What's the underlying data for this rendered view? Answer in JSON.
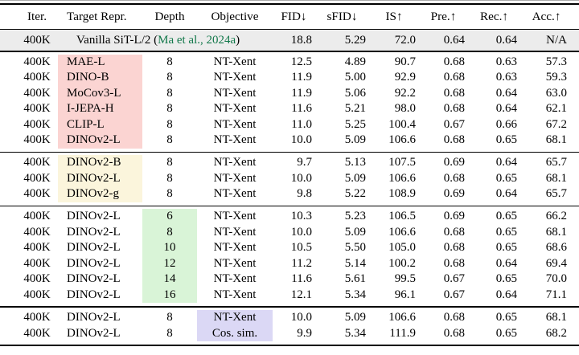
{
  "table": {
    "headers": [
      "Iter.",
      "Target Repr.",
      "Depth",
      "Objective",
      "FID↓",
      "sFID↓",
      "IS↑",
      "Pre.↑",
      "Rec.↑",
      "Acc.↑"
    ],
    "baseline": {
      "iter": "400K",
      "target_prefix": "Vanilla SiT-L/2 (",
      "citation": "Ma et al., 2024a",
      "target_suffix": ")",
      "fid": "18.8",
      "sfid": "5.29",
      "is": "72.0",
      "pre": "0.64",
      "rec": "0.64",
      "acc": "N/A",
      "row_bg": "#ececec",
      "citation_color": "#12784a"
    },
    "sections": [
      {
        "name": "target-representation-ablation",
        "highlight_column": 1,
        "highlight_color": "#fbd4d2",
        "rows": [
          [
            "400K",
            "MAE-L",
            "8",
            "NT-Xent",
            "12.5",
            "4.89",
            "90.7",
            "0.68",
            "0.63",
            "57.3"
          ],
          [
            "400K",
            "DINO-B",
            "8",
            "NT-Xent",
            "11.9",
            "5.00",
            "92.9",
            "0.68",
            "0.63",
            "59.3"
          ],
          [
            "400K",
            "MoCov3-L",
            "8",
            "NT-Xent",
            "11.9",
            "5.06",
            "92.2",
            "0.68",
            "0.64",
            "63.0"
          ],
          [
            "400K",
            "I-JEPA-H",
            "8",
            "NT-Xent",
            "11.6",
            "5.21",
            "98.0",
            "0.68",
            "0.64",
            "62.1"
          ],
          [
            "400K",
            "CLIP-L",
            "8",
            "NT-Xent",
            "11.0",
            "5.25",
            "100.4",
            "0.67",
            "0.66",
            "67.2"
          ],
          [
            "400K",
            "DINOv2-L",
            "8",
            "NT-Xent",
            "10.0",
            "5.09",
            "106.6",
            "0.68",
            "0.65",
            "68.1"
          ]
        ]
      },
      {
        "name": "model-size-ablation",
        "highlight_column": 1,
        "highlight_color": "#fbf5dc",
        "rows": [
          [
            "400K",
            "DINOv2-B",
            "8",
            "NT-Xent",
            "9.7",
            "5.13",
            "107.5",
            "0.69",
            "0.64",
            "65.7"
          ],
          [
            "400K",
            "DINOv2-L",
            "8",
            "NT-Xent",
            "10.0",
            "5.09",
            "106.6",
            "0.68",
            "0.65",
            "68.1"
          ],
          [
            "400K",
            "DINOv2-g",
            "8",
            "NT-Xent",
            "9.8",
            "5.22",
            "108.9",
            "0.69",
            "0.64",
            "65.7"
          ]
        ]
      },
      {
        "name": "depth-ablation",
        "highlight_column": 2,
        "highlight_color": "#d9f4d7",
        "rows": [
          [
            "400K",
            "DINOv2-L",
            "6",
            "NT-Xent",
            "10.3",
            "5.23",
            "106.5",
            "0.69",
            "0.65",
            "66.2"
          ],
          [
            "400K",
            "DINOv2-L",
            "8",
            "NT-Xent",
            "10.0",
            "5.09",
            "106.6",
            "0.68",
            "0.65",
            "68.1"
          ],
          [
            "400K",
            "DINOv2-L",
            "10",
            "NT-Xent",
            "10.5",
            "5.50",
            "105.0",
            "0.68",
            "0.65",
            "68.6"
          ],
          [
            "400K",
            "DINOv2-L",
            "12",
            "NT-Xent",
            "11.2",
            "5.14",
            "100.2",
            "0.68",
            "0.64",
            "69.4"
          ],
          [
            "400K",
            "DINOv2-L",
            "14",
            "NT-Xent",
            "11.6",
            "5.61",
            "99.5",
            "0.67",
            "0.65",
            "70.0"
          ],
          [
            "400K",
            "DINOv2-L",
            "16",
            "NT-Xent",
            "12.1",
            "5.34",
            "96.1",
            "0.67",
            "0.64",
            "71.1"
          ]
        ]
      },
      {
        "name": "objective-ablation",
        "highlight_column": 3,
        "highlight_color": "#dbd8f5",
        "rows": [
          [
            "400K",
            "DINOv2-L",
            "8",
            "NT-Xent",
            "10.0",
            "5.09",
            "106.6",
            "0.68",
            "0.65",
            "68.1"
          ],
          [
            "400K",
            "DINOv2-L",
            "8",
            "Cos. sim.",
            "9.9",
            "5.34",
            "111.9",
            "0.68",
            "0.65",
            "68.2"
          ]
        ]
      }
    ]
  }
}
